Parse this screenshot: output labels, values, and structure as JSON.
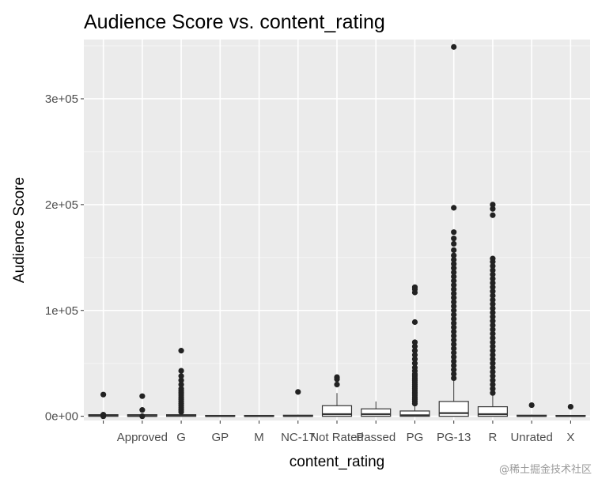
{
  "watermark": "@稀土掘金技术社区",
  "chart_data": {
    "type": "box",
    "title": "Audience Score vs. content_rating",
    "xlabel": "content_rating",
    "ylabel": "Audience Score",
    "ylim": [
      -4000,
      356000
    ],
    "yticks": [
      {
        "value": 0,
        "label": "0e+00"
      },
      {
        "value": 100000,
        "label": "1e+05"
      },
      {
        "value": 200000,
        "label": "2e+05"
      },
      {
        "value": 300000,
        "label": "3e+05"
      }
    ],
    "grid": true,
    "background": "#ebebeb",
    "categories": [
      "",
      "Approved",
      "G",
      "GP",
      "M",
      "NC-17",
      "Not Rated",
      "Passed",
      "PG",
      "PG-13",
      "R",
      "Unrated",
      "X"
    ],
    "boxes": [
      {
        "category": "",
        "q1": 0,
        "median": 500,
        "q3": 1500,
        "whisker_low": 0,
        "whisker_high": 2500,
        "outliers": [
          0,
          1500,
          20500
        ]
      },
      {
        "category": "Approved",
        "q1": 0,
        "median": 300,
        "q3": 1500,
        "whisker_low": 0,
        "whisker_high": 2500,
        "outliers": [
          0,
          6000,
          19000
        ]
      },
      {
        "category": "G",
        "q1": 0,
        "median": 500,
        "q3": 1500,
        "whisker_low": 0,
        "whisker_high": 3000,
        "outliers": [
          4000,
          6000,
          8000,
          10000,
          12000,
          14000,
          16000,
          18000,
          20000,
          22000,
          24000,
          26000,
          30000,
          34000,
          38000,
          43000,
          62000
        ]
      },
      {
        "category": "GP",
        "q1": 0,
        "median": 200,
        "q3": 800,
        "whisker_low": 0,
        "whisker_high": 1000,
        "outliers": []
      },
      {
        "category": "M",
        "q1": 0,
        "median": 200,
        "q3": 800,
        "whisker_low": 0,
        "whisker_high": 1000,
        "outliers": []
      },
      {
        "category": "NC-17",
        "q1": 0,
        "median": 300,
        "q3": 1000,
        "whisker_low": 0,
        "whisker_high": 1500,
        "outliers": [
          23000
        ]
      },
      {
        "category": "Not Rated",
        "q1": 0,
        "median": 2000,
        "q3": 10000,
        "whisker_low": 0,
        "whisker_high": 22000,
        "outliers": [
          30000,
          35000,
          37000
        ]
      },
      {
        "category": "Passed",
        "q1": 0,
        "median": 2000,
        "q3": 7000,
        "whisker_low": 0,
        "whisker_high": 14000,
        "outliers": []
      },
      {
        "category": "PG",
        "q1": 0,
        "median": 1000,
        "q3": 5000,
        "whisker_low": 0,
        "whisker_high": 10000,
        "outliers": [
          12000,
          14000,
          16000,
          18000,
          20000,
          22000,
          24000,
          26000,
          28000,
          30000,
          32000,
          34000,
          36000,
          38000,
          40000,
          43000,
          46000,
          50000,
          54000,
          58000,
          62000,
          66000,
          70000,
          89000,
          117000,
          120000,
          122000
        ]
      },
      {
        "category": "PG-13",
        "q1": 0,
        "median": 3000,
        "q3": 14000,
        "whisker_low": 0,
        "whisker_high": 34000,
        "outliers": [
          36000,
          40000,
          44000,
          48000,
          52000,
          56000,
          60000,
          64000,
          68000,
          72000,
          76000,
          80000,
          84000,
          88000,
          92000,
          96000,
          100000,
          104000,
          108000,
          112000,
          116000,
          120000,
          124000,
          128000,
          132000,
          136000,
          140000,
          144000,
          148000,
          152000,
          157000,
          163000,
          168000,
          174000,
          197000,
          349000
        ]
      },
      {
        "category": "R",
        "q1": 0,
        "median": 2000,
        "q3": 9000,
        "whisker_low": 0,
        "whisker_high": 20000,
        "outliers": [
          22000,
          26000,
          30000,
          34000,
          38000,
          42000,
          46000,
          50000,
          54000,
          58000,
          62000,
          66000,
          70000,
          74000,
          78000,
          82000,
          86000,
          90000,
          94000,
          98000,
          102000,
          106000,
          110000,
          114000,
          118000,
          122000,
          126000,
          130000,
          134000,
          138000,
          142000,
          146000,
          149000,
          190000,
          196000,
          200000
        ]
      },
      {
        "category": "Unrated",
        "q1": 0,
        "median": 300,
        "q3": 1000,
        "whisker_low": 0,
        "whisker_high": 1500,
        "outliers": [
          10500
        ]
      },
      {
        "category": "X",
        "q1": 0,
        "median": 200,
        "q3": 800,
        "whisker_low": 0,
        "whisker_high": 1000,
        "outliers": [
          9000
        ]
      }
    ]
  }
}
